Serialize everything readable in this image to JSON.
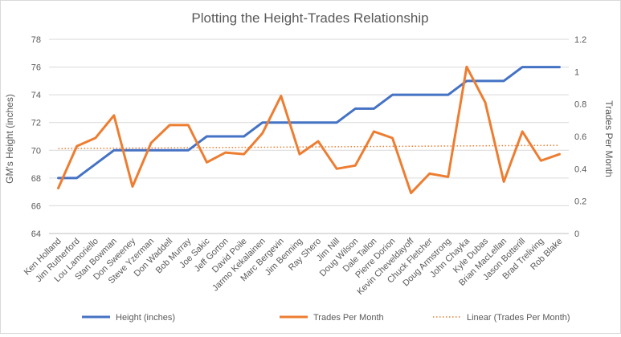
{
  "chart_data": {
    "type": "line",
    "title": "Plotting the Height-Trades Relationship",
    "ylabel": "GM's Height (inches)",
    "y2label": "Trades Per Month",
    "ylim": [
      64,
      78
    ],
    "yticks": [
      "64",
      "66",
      "68",
      "70",
      "72",
      "74",
      "76",
      "78"
    ],
    "y2lim": [
      0,
      1.2
    ],
    "y2ticks": [
      "0",
      "0.2",
      "0.4",
      "0.6",
      "0.8",
      "1",
      "1.2"
    ],
    "grid": true,
    "legend": "bottom",
    "categories": [
      "Ken Holland",
      "Jim Rutherford",
      "Lou Lamoriello",
      "Stan Bowman",
      "Don Sweeney",
      "Steve Yzerman",
      "Don Waddell",
      "Bob Murray",
      "Joe Sakic",
      "Jeff Gorton",
      "David Poile",
      "Jarmo Kekalainen",
      "Marc Bergevin",
      "Jim Benning",
      "Ray Shero",
      "Jim Nill",
      "Doug Wilson",
      "Dale Tallon",
      "Pierre Dorion",
      "Kevin Cheveldayoff",
      "Chuck Fletcher",
      "Doug Armstrong",
      "John Chayka",
      "Kyle Dubas",
      "Brian MacLellan",
      "Jason Botterill",
      "Brad Treliving",
      "Rob Blake"
    ],
    "series": [
      {
        "name": "Height (inches)",
        "axis": "left",
        "color": "#4472c4",
        "values": [
          68,
          68,
          69,
          70,
          70,
          70,
          70,
          70,
          71,
          71,
          71,
          72,
          72,
          72,
          72,
          72,
          73,
          73,
          74,
          74,
          74,
          74,
          75,
          75,
          75,
          76,
          76,
          76
        ]
      },
      {
        "name": "Trades Per Month",
        "axis": "right",
        "color": "#ed7d31",
        "values": [
          0.28,
          0.54,
          0.59,
          0.73,
          0.29,
          0.56,
          0.67,
          0.67,
          0.44,
          0.5,
          0.49,
          0.62,
          0.85,
          0.49,
          0.57,
          0.4,
          0.42,
          0.63,
          0.59,
          0.25,
          0.37,
          0.35,
          1.03,
          0.81,
          0.32,
          0.63,
          0.45,
          0.49
        ]
      }
    ],
    "trendline": {
      "name": "Linear (Trades Per Month)",
      "axis": "right",
      "color": "#ed7d31",
      "start": 0.525,
      "end": 0.545
    }
  }
}
